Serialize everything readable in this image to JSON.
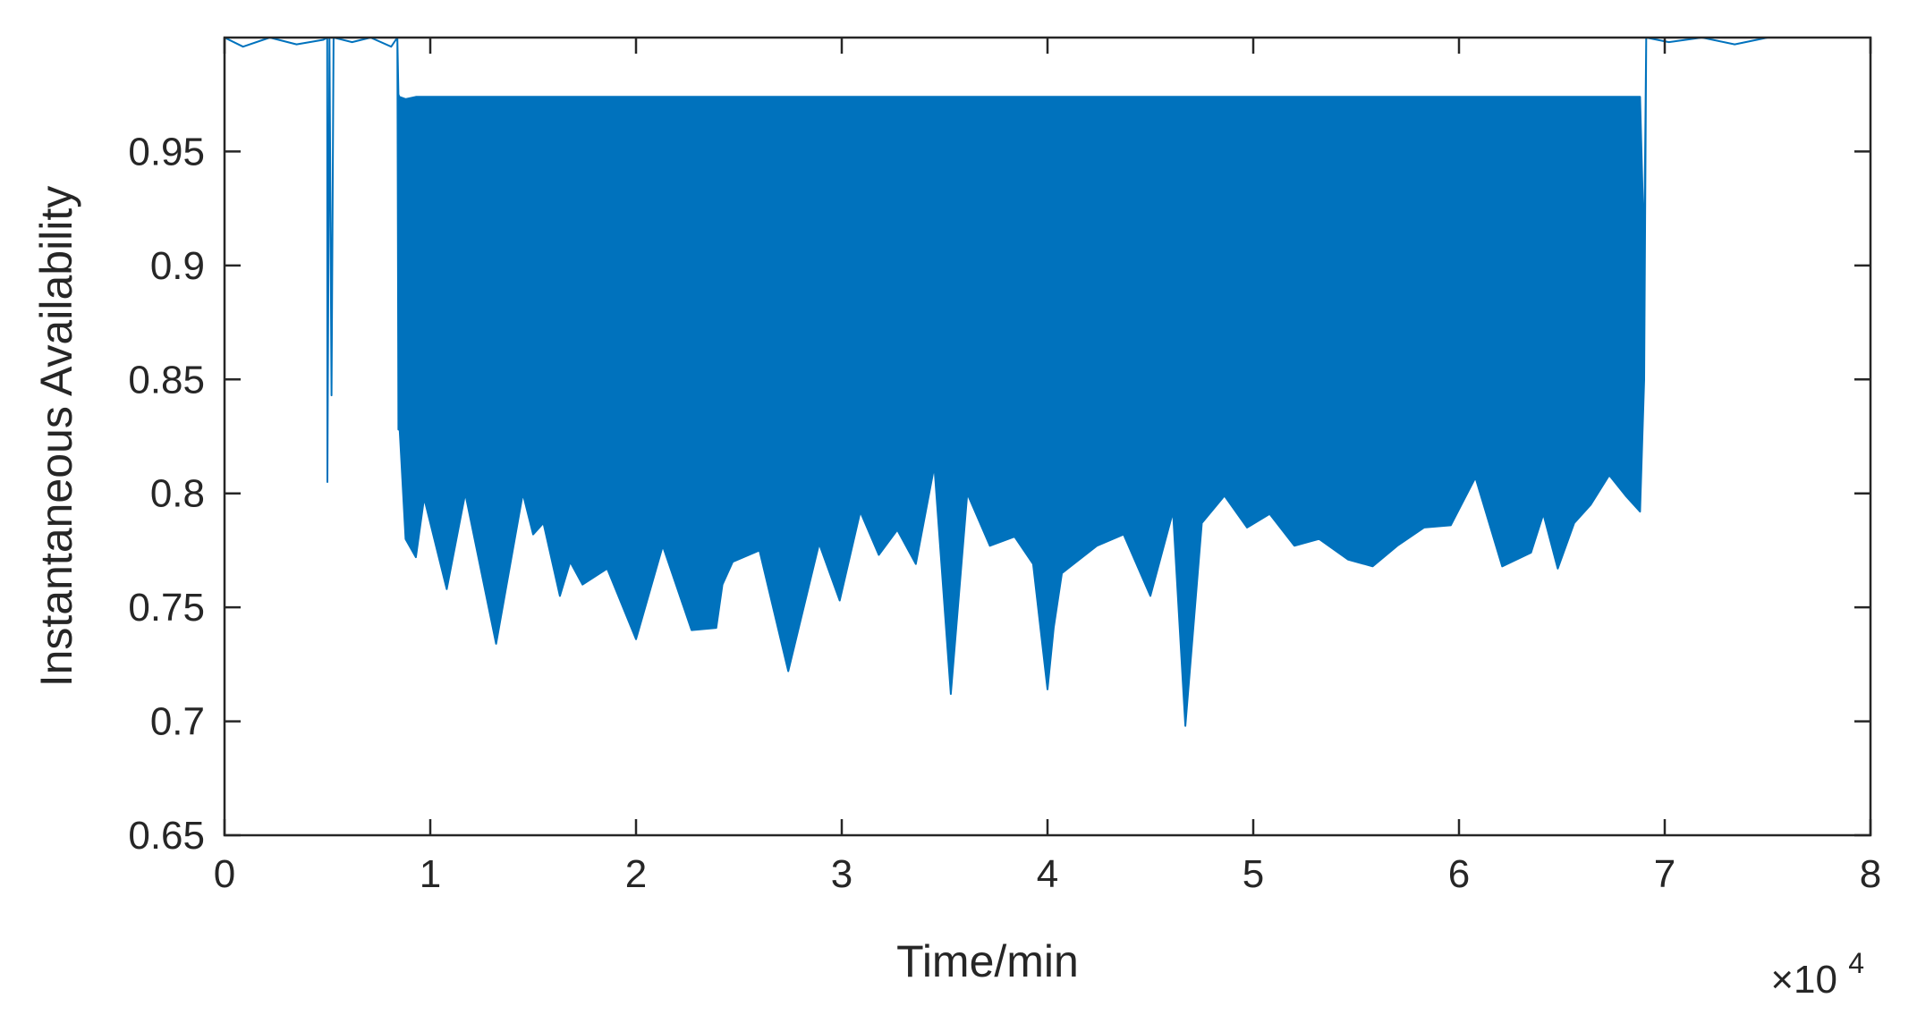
{
  "chart_data": {
    "type": "line",
    "title": "",
    "xlabel": "Time/min",
    "ylabel": "Instantaneous Availability",
    "x_exponent_label": "×10",
    "x_exponent_power": "4",
    "xlim": [
      0,
      80000
    ],
    "ylim": [
      0.65,
      1.0
    ],
    "xticks": [
      0,
      10000,
      20000,
      30000,
      40000,
      50000,
      60000,
      70000,
      80000
    ],
    "xtick_labels": [
      "0",
      "1",
      "2",
      "3",
      "4",
      "5",
      "6",
      "7",
      "8"
    ],
    "yticks": [
      0.65,
      0.7,
      0.75,
      0.8,
      0.85,
      0.9,
      0.95
    ],
    "ytick_labels": [
      "0.65",
      "0.7",
      "0.75",
      "0.8",
      "0.85",
      "0.9",
      "0.95"
    ],
    "grid": false,
    "legend": "none",
    "series": [
      {
        "color": "#0072bd",
        "x": [
          0,
          900,
          2200,
          3500,
          4800,
          4990,
          5000,
          5100,
          5200,
          5300,
          6200,
          7100,
          8100,
          8400,
          8450,
          8500,
          8800,
          9300,
          9700,
          10800,
          11700,
          13200,
          14500,
          15000,
          15500,
          16300,
          16800,
          17400,
          18600,
          20000,
          21300,
          22700,
          23900,
          24200,
          24700,
          26000,
          27400,
          28900,
          29900,
          30900,
          31800,
          32700,
          33600,
          34500,
          35300,
          36100,
          37200,
          38400,
          39300,
          40000,
          40300,
          40700,
          42400,
          43700,
          45000,
          46100,
          46700,
          47500,
          48600,
          49700,
          50800,
          52000,
          53200,
          54600,
          55800,
          57000,
          58300,
          59600,
          60800,
          62100,
          63500,
          64100,
          64800,
          65600,
          66400,
          67300,
          68100,
          68800,
          69000,
          69100,
          70200,
          71800,
          73400,
          75000
        ],
        "y_upper": [
          1.0,
          0.996,
          1.0,
          0.997,
          0.999,
          1.0,
          0.805,
          1.0,
          0.843,
          1.0,
          0.998,
          1.0,
          0.996,
          1.0,
          0.975,
          0.974,
          0.973,
          0.974,
          0.974,
          0.974,
          0.974,
          0.974,
          0.974,
          0.974,
          0.974,
          0.974,
          0.974,
          0.974,
          0.974,
          0.974,
          0.974,
          0.974,
          0.974,
          0.974,
          0.974,
          0.974,
          0.974,
          0.974,
          0.974,
          0.974,
          0.974,
          0.974,
          0.974,
          0.974,
          0.974,
          0.974,
          0.974,
          0.974,
          0.974,
          0.974,
          0.974,
          0.974,
          0.974,
          0.974,
          0.974,
          0.974,
          0.974,
          0.974,
          0.974,
          0.974,
          0.974,
          0.974,
          0.974,
          0.974,
          0.974,
          0.974,
          0.974,
          0.974,
          0.974,
          0.974,
          0.974,
          0.974,
          0.974,
          0.974,
          0.974,
          0.974,
          0.974,
          0.974,
          0.905,
          1.0,
          0.998,
          1.0,
          0.997,
          1.0
        ],
        "y_lower": [
          1.0,
          0.996,
          1.0,
          0.997,
          0.999,
          1.0,
          0.805,
          1.0,
          0.843,
          1.0,
          0.998,
          1.0,
          0.996,
          1.0,
          0.828,
          0.83,
          0.78,
          0.772,
          0.798,
          0.758,
          0.8,
          0.734,
          0.8,
          0.782,
          0.787,
          0.755,
          0.77,
          0.76,
          0.767,
          0.736,
          0.777,
          0.74,
          0.741,
          0.76,
          0.77,
          0.775,
          0.722,
          0.778,
          0.753,
          0.792,
          0.773,
          0.784,
          0.769,
          0.812,
          0.712,
          0.8,
          0.777,
          0.781,
          0.769,
          0.714,
          0.741,
          0.765,
          0.777,
          0.782,
          0.755,
          0.792,
          0.698,
          0.787,
          0.799,
          0.785,
          0.791,
          0.777,
          0.78,
          0.771,
          0.768,
          0.777,
          0.785,
          0.786,
          0.807,
          0.768,
          0.774,
          0.791,
          0.767,
          0.787,
          0.795,
          0.808,
          0.799,
          0.792,
          0.85,
          1.0,
          0.998,
          1.0,
          0.997,
          1.0
        ]
      }
    ]
  }
}
